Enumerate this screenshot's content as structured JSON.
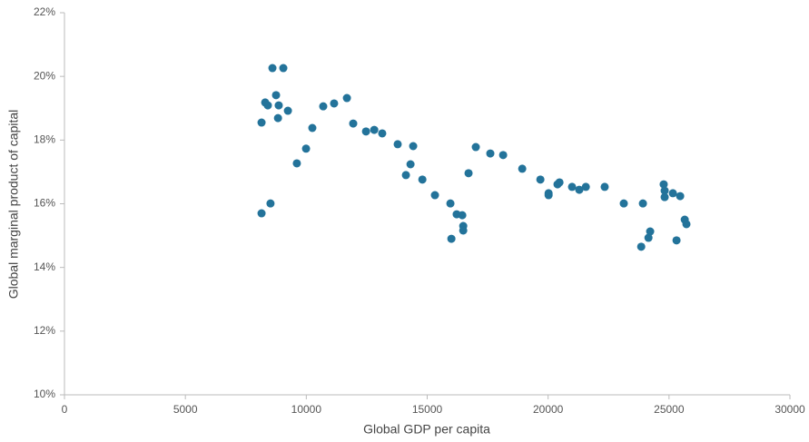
{
  "chart_data": {
    "type": "scatter",
    "x_label": "Global GDP per capita",
    "y_label": "Global marginal product of capital",
    "color": "#23739a",
    "grid": false,
    "xlim": [
      0,
      30000
    ],
    "xticks": [
      0,
      5000,
      10000,
      15000,
      20000,
      25000,
      30000
    ],
    "ylim": [
      10,
      22
    ],
    "yticks": [
      {
        "value": 10,
        "label": "10%"
      },
      {
        "value": 12,
        "label": "12%"
      },
      {
        "value": 14,
        "label": "14%"
      },
      {
        "value": 16,
        "label": "16%"
      },
      {
        "value": 18,
        "label": "18%"
      },
      {
        "value": 20,
        "label": "20%"
      },
      {
        "value": 22,
        "label": "22%"
      }
    ],
    "x": [
      8150,
      8150,
      8300,
      8410,
      8520,
      8600,
      8750,
      8860,
      8830,
      9050,
      9240,
      9610,
      9990,
      10250,
      10700,
      11150,
      11680,
      11940,
      12470,
      12810,
      13140,
      13780,
      14120,
      14310,
      14420,
      14800,
      15320,
      15960,
      16000,
      16220,
      16450,
      16490,
      16490,
      16710,
      17010,
      17610,
      18140,
      18930,
      19680,
      20020,
      20020,
      20390,
      20470,
      20990,
      21290,
      21560,
      22340,
      23130,
      23850,
      23920,
      24150,
      24220,
      24780,
      24820,
      24820,
      25160,
      25310,
      25460,
      25650,
      25720
    ],
    "values": [
      18.55,
      15.7,
      19.18,
      19.09,
      16.01,
      20.26,
      19.41,
      19.09,
      18.69,
      20.26,
      18.92,
      17.27,
      17.73,
      18.38,
      19.06,
      19.15,
      19.32,
      18.52,
      18.27,
      18.32,
      18.21,
      17.87,
      16.9,
      17.24,
      17.81,
      16.76,
      16.27,
      16.01,
      14.9,
      15.67,
      15.64,
      15.3,
      15.16,
      16.96,
      17.78,
      17.58,
      17.53,
      17.1,
      16.76,
      16.33,
      16.27,
      16.61,
      16.67,
      16.53,
      16.44,
      16.53,
      16.53,
      16.01,
      14.65,
      16.01,
      14.93,
      15.13,
      16.61,
      16.41,
      16.21,
      16.33,
      14.85,
      16.24,
      15.5,
      15.36
    ]
  }
}
